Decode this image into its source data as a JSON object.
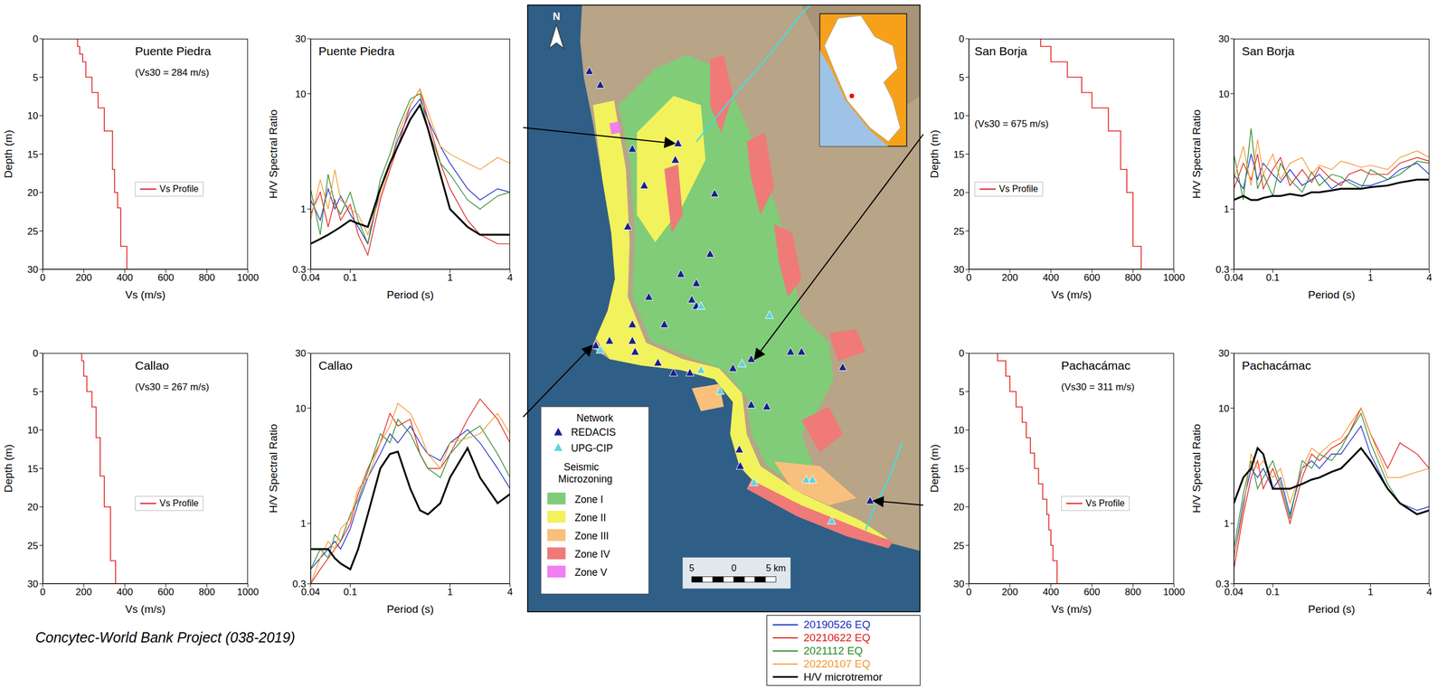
{
  "chart_data": [
    {
      "type": "profile",
      "title": "Puente Piedra",
      "annotation": "(Vs30 = 284 m/s)",
      "x_label": "Vs (m/s)",
      "y_label": "Depth (m)",
      "xlim": [
        0,
        1000
      ],
      "xticks": [
        0,
        200,
        400,
        600,
        800,
        1000
      ],
      "ylim": [
        0,
        30
      ],
      "yticks": [
        0,
        5,
        10,
        15,
        20,
        25,
        30
      ],
      "legend": "right",
      "series": [
        {
          "name": "Vs Profile",
          "color": "#e0201c",
          "line_style": "step",
          "depth": [
            0,
            1,
            2,
            3,
            5,
            7,
            9,
            12,
            17,
            20,
            22,
            27,
            30
          ],
          "vs": [
            170,
            180,
            195,
            210,
            240,
            270,
            300,
            340,
            350,
            365,
            380,
            410
          ]
        }
      ]
    },
    {
      "type": "line",
      "title": "Puente Piedra",
      "x_label": "Period (s)",
      "y_label": "H/V Spectral Ratio",
      "log": true,
      "xlim": [
        0.04,
        4
      ],
      "xticks": [
        0.04,
        0.1,
        1,
        4
      ],
      "ylim": [
        0.3,
        30
      ],
      "yticks": [
        0.3,
        1,
        10,
        30
      ],
      "x": [
        0.04,
        0.05,
        0.06,
        0.07,
        0.08,
        0.1,
        0.12,
        0.15,
        0.2,
        0.25,
        0.3,
        0.4,
        0.5,
        0.6,
        0.8,
        1,
        1.5,
        2,
        3,
        4
      ],
      "series": [
        {
          "name": "20190526 EQ",
          "color": "#1c2fc4",
          "line_style": "solid",
          "values": [
            1.2,
            0.8,
            1.5,
            1.0,
            1.3,
            0.9,
            0.7,
            0.5,
            1.5,
            2.5,
            4,
            7,
            9,
            6,
            3.5,
            2.5,
            1.5,
            1.2,
            1.5,
            1.4
          ]
        },
        {
          "name": "20210622 EQ",
          "color": "#e0201c",
          "line_style": "solid",
          "values": [
            0.9,
            1.4,
            0.7,
            1.2,
            0.8,
            1.1,
            0.6,
            0.4,
            1.2,
            2.2,
            3.5,
            8,
            11,
            6,
            2.5,
            1.5,
            0.8,
            0.6,
            0.5,
            0.5
          ]
        },
        {
          "name": "2021112 EQ",
          "color": "#2e8b2e",
          "line_style": "solid",
          "values": [
            1.5,
            0.6,
            2.0,
            1.1,
            0.9,
            1.4,
            0.8,
            0.5,
            1.8,
            3,
            5,
            9,
            10,
            5,
            2.5,
            2,
            1.2,
            1,
            1.3,
            1.4
          ]
        },
        {
          "name": "20220107 EQ",
          "color": "#f29a33",
          "line_style": "solid",
          "values": [
            0.8,
            1.8,
            1.0,
            2.2,
            1.2,
            1.0,
            0.9,
            0.6,
            1.3,
            2.4,
            4.5,
            8,
            11,
            7,
            3.5,
            3,
            2.5,
            2.2,
            2.8,
            2.5
          ]
        },
        {
          "name": "H/V microtremor",
          "color": "#000000",
          "line_style": "thick",
          "values": [
            0.5,
            0.55,
            0.6,
            0.65,
            0.7,
            0.8,
            0.75,
            0.7,
            1.5,
            2.5,
            3.5,
            6,
            8,
            5,
            2,
            1,
            0.7,
            0.6,
            0.6,
            0.6
          ]
        }
      ]
    },
    {
      "type": "profile",
      "title": "Callao",
      "annotation": "(Vs30 = 267 m/s)",
      "x_label": "Vs (m/s)",
      "y_label": "Depth (m)",
      "xlim": [
        0,
        1000
      ],
      "xticks": [
        0,
        200,
        400,
        600,
        800,
        1000
      ],
      "ylim": [
        0,
        30
      ],
      "yticks": [
        0,
        5,
        10,
        15,
        20,
        25,
        30
      ],
      "legend": "right",
      "series": [
        {
          "name": "Vs Profile",
          "color": "#e0201c",
          "line_style": "step",
          "depth": [
            0,
            1,
            3,
            5,
            7,
            11,
            16,
            20,
            27,
            30
          ],
          "vs": [
            190,
            200,
            215,
            240,
            260,
            280,
            300,
            330,
            355
          ]
        }
      ]
    },
    {
      "type": "line",
      "title": "Callao",
      "x_label": "Period (s)",
      "y_label": "H/V Spectral Ratio",
      "log": true,
      "xlim": [
        0.04,
        4
      ],
      "xticks": [
        0.04,
        0.1,
        1,
        4
      ],
      "ylim": [
        0.3,
        30
      ],
      "yticks": [
        0.3,
        1,
        10,
        30
      ],
      "x": [
        0.04,
        0.05,
        0.06,
        0.07,
        0.08,
        0.1,
        0.12,
        0.15,
        0.2,
        0.25,
        0.3,
        0.4,
        0.5,
        0.6,
        0.8,
        1,
        1.5,
        2,
        3,
        4
      ],
      "series": [
        {
          "name": "20190526 EQ",
          "color": "#1c2fc4",
          "line_style": "solid",
          "values": [
            0.4,
            0.5,
            0.6,
            0.7,
            0.6,
            0.9,
            1.5,
            2.5,
            4,
            6,
            5,
            7,
            5,
            4,
            3.5,
            5,
            6.5,
            5,
            3,
            2
          ]
        },
        {
          "name": "20210622 EQ",
          "color": "#e0201c",
          "line_style": "solid",
          "values": [
            0.3,
            0.4,
            0.5,
            0.6,
            0.7,
            1.0,
            1.8,
            3,
            5,
            9,
            7,
            8,
            4,
            3,
            3,
            4,
            8,
            12,
            8,
            5
          ]
        },
        {
          "name": "2021112 EQ",
          "color": "#2e8b2e",
          "line_style": "solid",
          "values": [
            0.4,
            0.6,
            0.5,
            0.8,
            0.7,
            1.2,
            1.6,
            2.8,
            6,
            5,
            8,
            6,
            4,
            3,
            2.5,
            4,
            6,
            7,
            4,
            2.5
          ]
        },
        {
          "name": "20220107 EQ",
          "color": "#f29a33",
          "line_style": "solid",
          "values": [
            0.3,
            0.5,
            0.7,
            0.6,
            0.9,
            1.1,
            2,
            2.5,
            5,
            7,
            11,
            9,
            6,
            4,
            3,
            5,
            5.5,
            6,
            9,
            6
          ]
        },
        {
          "name": "H/V microtremor",
          "color": "#000000",
          "line_style": "thick",
          "values": [
            0.6,
            0.6,
            0.6,
            0.5,
            0.45,
            0.4,
            0.6,
            1.2,
            3,
            4,
            4.2,
            2,
            1.3,
            1.2,
            1.5,
            2.5,
            4.5,
            2.5,
            1.5,
            1.8
          ]
        }
      ]
    },
    {
      "type": "profile",
      "title": "San Borja",
      "annotation": "(Vs30 = 675 m/s)",
      "x_label": "Vs (m/s)",
      "y_label": "Depth (m)",
      "xlim": [
        0,
        1000
      ],
      "xticks": [
        0,
        200,
        400,
        600,
        800,
        1000
      ],
      "ylim": [
        0,
        30
      ],
      "yticks": [
        0,
        5,
        10,
        15,
        20,
        25,
        30
      ],
      "legend": "left",
      "series": [
        {
          "name": "Vs Profile",
          "color": "#e0201c",
          "line_style": "step",
          "depth": [
            0,
            1,
            3,
            5,
            7,
            9,
            12,
            17,
            20,
            27,
            30
          ],
          "vs": [
            350,
            400,
            480,
            550,
            600,
            680,
            740,
            770,
            800,
            840
          ]
        }
      ]
    },
    {
      "type": "line",
      "title": "San Borja",
      "x_label": "Period (s)",
      "y_label": "H/V Spectral Ratio",
      "log": true,
      "xlim": [
        0.04,
        4
      ],
      "xticks": [
        0.04,
        0.1,
        1,
        4
      ],
      "ylim": [
        0.3,
        30
      ],
      "yticks": [
        0.3,
        1,
        10,
        30
      ],
      "x": [
        0.04,
        0.05,
        0.06,
        0.07,
        0.08,
        0.1,
        0.12,
        0.15,
        0.2,
        0.25,
        0.3,
        0.4,
        0.5,
        0.6,
        0.8,
        1,
        1.5,
        2,
        3,
        4
      ],
      "series": [
        {
          "name": "20190526 EQ",
          "color": "#1c2fc4",
          "line_style": "solid",
          "values": [
            2.0,
            1.5,
            3,
            1.8,
            2.5,
            2,
            1.7,
            2.2,
            1.6,
            1.8,
            2.0,
            1.5,
            1.7,
            1.8,
            1.6,
            1.6,
            1.8,
            2.2,
            2.5,
            2.0
          ]
        },
        {
          "name": "20210622 EQ",
          "color": "#e0201c",
          "line_style": "solid",
          "values": [
            1.5,
            2.5,
            1.8,
            3,
            1.5,
            2.2,
            2.8,
            1.6,
            2.2,
            1.7,
            2.3,
            1.8,
            1.6,
            2.0,
            2.2,
            2.0,
            2.0,
            2.5,
            2.8,
            2.6
          ]
        },
        {
          "name": "2021112 EQ",
          "color": "#2e8b2e",
          "line_style": "solid",
          "values": [
            3,
            1.2,
            5,
            1.5,
            2,
            1.3,
            2.5,
            1.8,
            1.4,
            2.1,
            1.6,
            2.0,
            1.9,
            1.7,
            1.5,
            2.2,
            1.8,
            2.0,
            2.6,
            2.5
          ]
        },
        {
          "name": "20220107 EQ",
          "color": "#f29a33",
          "line_style": "solid",
          "values": [
            1.8,
            3.5,
            1.6,
            4,
            2,
            3,
            1.8,
            2.5,
            2.8,
            2.0,
            2.4,
            2.2,
            2.6,
            2.5,
            2.3,
            2.4,
            2.2,
            2.8,
            3.2,
            2.8
          ]
        },
        {
          "name": "H/V microtremor",
          "color": "#000000",
          "line_style": "thick",
          "values": [
            1.2,
            1.3,
            1.2,
            1.2,
            1.25,
            1.3,
            1.3,
            1.35,
            1.3,
            1.4,
            1.4,
            1.45,
            1.5,
            1.5,
            1.5,
            1.55,
            1.6,
            1.7,
            1.8,
            1.8
          ]
        }
      ]
    },
    {
      "type": "profile",
      "title": "Pachacámac",
      "annotation": "(Vs30 = 311 m/s)",
      "x_label": "Vs (m/s)",
      "y_label": "Depth (m)",
      "xlim": [
        0,
        1000
      ],
      "xticks": [
        0,
        200,
        400,
        600,
        800,
        1000
      ],
      "ylim": [
        0,
        30
      ],
      "yticks": [
        0,
        5,
        10,
        15,
        20,
        25,
        30
      ],
      "legend": "right",
      "series": [
        {
          "name": "Vs Profile",
          "color": "#e0201c",
          "line_style": "step",
          "depth": [
            0,
            1,
            3,
            5,
            7,
            9,
            11,
            13,
            15,
            17,
            19,
            21,
            23,
            25,
            27,
            30
          ],
          "vs": [
            140,
            180,
            200,
            230,
            260,
            280,
            300,
            320,
            340,
            360,
            380,
            390,
            400,
            410,
            430
          ]
        }
      ]
    },
    {
      "type": "line",
      "title": "Pachacámac",
      "x_label": "Period (s)",
      "y_label": "H/V Spectral Ratio",
      "log": true,
      "xlim": [
        0.04,
        4
      ],
      "xticks": [
        0.04,
        0.1,
        1,
        4
      ],
      "ylim": [
        0.3,
        30
      ],
      "yticks": [
        0.3,
        1,
        10,
        30
      ],
      "x": [
        0.04,
        0.05,
        0.06,
        0.07,
        0.08,
        0.1,
        0.12,
        0.15,
        0.2,
        0.25,
        0.3,
        0.4,
        0.5,
        0.6,
        0.8,
        1,
        1.5,
        2,
        3,
        4
      ],
      "series": [
        {
          "name": "20190526 EQ",
          "color": "#1c2fc4",
          "line_style": "solid",
          "values": [
            0.5,
            1.5,
            3,
            2.5,
            3,
            2,
            2.5,
            1.2,
            3,
            3.5,
            3,
            4,
            4,
            5,
            7,
            4,
            2,
            1.5,
            1.3,
            1.4
          ]
        },
        {
          "name": "20210622 EQ",
          "color": "#e0201c",
          "line_style": "solid",
          "values": [
            0.4,
            1.2,
            2.5,
            3.5,
            2,
            3,
            2,
            1,
            2.5,
            4,
            3.5,
            4.5,
            5,
            6,
            10,
            6,
            3,
            5,
            4,
            3
          ]
        },
        {
          "name": "2021112 EQ",
          "color": "#2e8b2e",
          "line_style": "solid",
          "values": [
            0.6,
            1.8,
            3.5,
            2,
            2.5,
            3.5,
            2.2,
            1.1,
            3.5,
            3,
            4,
            3.5,
            4.5,
            6,
            9,
            5,
            2.2,
            1.5,
            1.2,
            1.3
          ]
        },
        {
          "name": "20220107 EQ",
          "color": "#f29a33",
          "line_style": "solid",
          "values": [
            0.5,
            1.3,
            4,
            3,
            3.5,
            2.5,
            3,
            1.5,
            3,
            4.5,
            4,
            5,
            5.5,
            7,
            10,
            6,
            2.5,
            2.5,
            2.8,
            3
          ]
        },
        {
          "name": "H/V microtremor",
          "color": "#000000",
          "line_style": "thick",
          "values": [
            1.5,
            2.5,
            3,
            4.5,
            4,
            2,
            2,
            2,
            2.2,
            2.4,
            2.5,
            2.8,
            3,
            3.5,
            4.5,
            3.5,
            2,
            1.5,
            1.2,
            1.3
          ]
        }
      ]
    }
  ],
  "map": {
    "north_label": "N",
    "network_title": "Network",
    "networks": [
      {
        "name": "REDACIS",
        "color": "#1a1f8c"
      },
      {
        "name": "UPG-CIP",
        "color": "#5fd3e0"
      }
    ],
    "zoning_title": "Seismic Microzoning",
    "zones": [
      {
        "name": "Zone I",
        "color": "#80cc78"
      },
      {
        "name": "Zone II",
        "color": "#f2f25c"
      },
      {
        "name": "Zone III",
        "color": "#f8c07c"
      },
      {
        "name": "Zone IV",
        "color": "#f07a78"
      },
      {
        "name": "Zone V",
        "color": "#f27ef2"
      }
    ],
    "scale_labels": [
      "5",
      "0",
      "5 km"
    ]
  },
  "footer": "Concytec-World Bank Project (038-2019)"
}
